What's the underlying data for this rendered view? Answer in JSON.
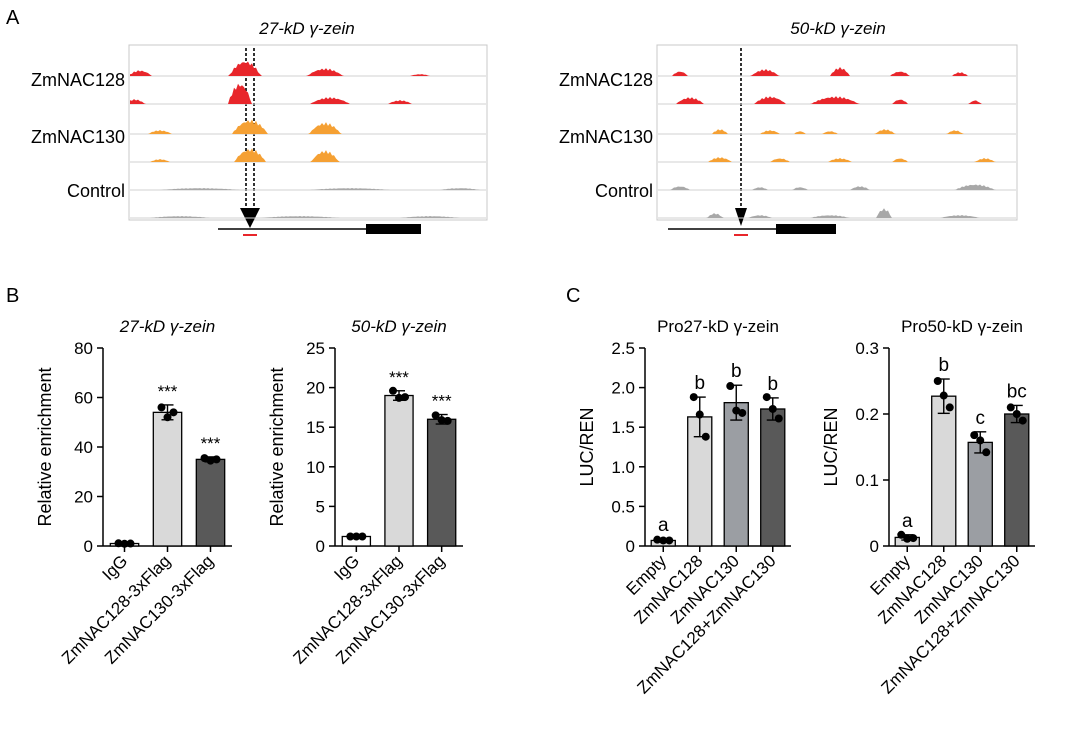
{
  "panels": {
    "A": "A",
    "B": "B",
    "C": "C"
  },
  "colors": {
    "zmnac128": "#e8262b",
    "zmnac130": "#f5a033",
    "control": "#a8a8a8",
    "igg_bar": "#ffffff",
    "bar_light": "#d9d9d9",
    "bar_mid": "#9b9ea3",
    "bar_dark": "#595959",
    "axis": "#000000"
  },
  "chart_data": [
    {
      "type": "genome-tracks",
      "title": "27-kD γ-zein",
      "tracks": [
        "ZmNAC128",
        "ZmNAC130",
        "Control"
      ],
      "replicates_per_track": 2
    },
    {
      "type": "genome-tracks",
      "title": "50-kD γ-zein",
      "tracks": [
        "ZmNAC128",
        "ZmNAC130",
        "Control"
      ],
      "replicates_per_track": 2
    },
    {
      "type": "bar",
      "title": "27-kD γ-zein",
      "ylabel": "Relative enrichment",
      "ylim": [
        0,
        80
      ],
      "yticks": [
        "0",
        "20",
        "40",
        "60",
        "80"
      ],
      "categories": [
        "IgG",
        "ZmNAC128-3xFlag",
        "ZmNAC130-3xFlag"
      ],
      "values": [
        1,
        54,
        35
      ],
      "errors": [
        0.5,
        3,
        1
      ],
      "points": [
        [
          1.1,
          0.9,
          1.0
        ],
        [
          56,
          52,
          54
        ],
        [
          35.5,
          34.5,
          35
        ]
      ],
      "annotations": [
        "",
        "***",
        "***"
      ]
    },
    {
      "type": "bar",
      "title": "50-kD γ-zein",
      "ylabel": "Relative enrichment",
      "ylim": [
        0,
        25
      ],
      "yticks": [
        "0",
        "5",
        "10",
        "15",
        "20",
        "25"
      ],
      "categories": [
        "IgG",
        "ZmNAC128-3xFlag",
        "ZmNAC130-3xFlag"
      ],
      "values": [
        1.2,
        19,
        16
      ],
      "errors": [
        0.2,
        0.6,
        0.6
      ],
      "points": [
        [
          1.2,
          1.2,
          1.2
        ],
        [
          19.6,
          18.7,
          18.8
        ],
        [
          16.5,
          15.9,
          15.8
        ]
      ],
      "annotations": [
        "",
        "***",
        "***"
      ]
    },
    {
      "type": "bar",
      "title": "Pro27-kD γ-zein",
      "ylabel": "LUC/REN",
      "ylim": [
        0,
        2.5
      ],
      "yticks": [
        "0",
        "0.5",
        "1.0",
        "1.5",
        "2.0",
        "2.5"
      ],
      "categories": [
        "Empty",
        "ZmNAC128",
        "ZmNAC130",
        "ZmNAC128+ZmNAC130"
      ],
      "values": [
        0.07,
        1.63,
        1.81,
        1.73
      ],
      "errors": [
        0.02,
        0.25,
        0.22,
        0.14
      ],
      "points": [
        [
          0.08,
          0.07,
          0.07
        ],
        [
          1.88,
          1.66,
          1.38
        ],
        [
          2.02,
          1.71,
          1.68
        ],
        [
          1.88,
          1.73,
          1.61
        ]
      ],
      "annotations": [
        "a",
        "b",
        "b",
        "b"
      ]
    },
    {
      "type": "bar",
      "title": "Pro50-kD γ-zein",
      "ylabel": "LUC/REN",
      "ylim": [
        0,
        0.3
      ],
      "yticks": [
        "0",
        "0.1",
        "0.2",
        "0.3"
      ],
      "categories": [
        "Empty",
        "ZmNAC128",
        "ZmNAC130",
        "ZmNAC128+ZmNAC130"
      ],
      "values": [
        0.013,
        0.227,
        0.157,
        0.2
      ],
      "errors": [
        0.004,
        0.026,
        0.016,
        0.013
      ],
      "points": [
        [
          0.017,
          0.011,
          0.012
        ],
        [
          0.25,
          0.228,
          0.21
        ],
        [
          0.168,
          0.16,
          0.142
        ],
        [
          0.21,
          0.2,
          0.19
        ]
      ],
      "annotations": [
        "a",
        "b",
        "c",
        "bc"
      ]
    }
  ]
}
